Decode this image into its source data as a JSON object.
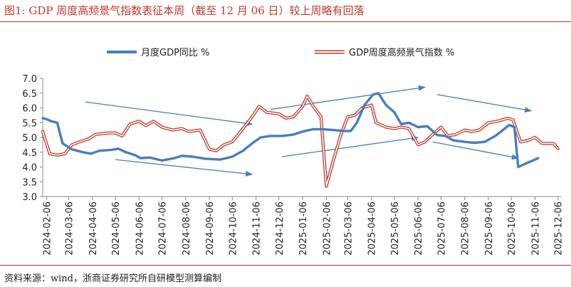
{
  "header": {
    "title": "图1:   GDP 周度高频景气指数表征本周（截至 12 月 06 日）较上周略有回落"
  },
  "footer": {
    "source": "资料来源：wind，浙商证券研究所自研模型测算编制"
  },
  "colors": {
    "title": "#c0392b",
    "gdp_yoy": "#4a7ebb",
    "index_outer": "#c0392b",
    "index_inner": "#ffffff",
    "arrow": "#4a7ebb",
    "axis": "#888888"
  },
  "chart_data": {
    "type": "line",
    "title": "",
    "xlabel": "",
    "ylabel": "",
    "ylim": [
      3.0,
      7.0
    ],
    "y_ticks": [
      "3.0",
      "3.5",
      "4.0",
      "4.5",
      "5.0",
      "5.5",
      "6.0",
      "6.5",
      "7.0"
    ],
    "x_tick_labels": [
      "2024-02-06",
      "2024-03-06",
      "2024-04-06",
      "2024-05-06",
      "2024-06-06",
      "2024-07-06",
      "2024-08-06",
      "2024-09-06",
      "2024-10-06",
      "2024-11-06",
      "2024-12-06",
      "2025-01-06",
      "2025-02-06",
      "2025-03-06",
      "2025-04-06",
      "2025-05-06",
      "2025-06-06",
      "2025-07-06",
      "2025-08-06",
      "2025-09-06",
      "2025-10-06",
      "2025-11-06",
      "2025-12-06"
    ],
    "grid": false,
    "legend_position": "top",
    "series": [
      {
        "name": "月度GDP同比 %",
        "style": "solid-thick",
        "points": [
          [
            "2024-02-01",
            5.65
          ],
          [
            "2024-02-06",
            5.62
          ],
          [
            "2024-02-12",
            5.55
          ],
          [
            "2024-02-20",
            5.5
          ],
          [
            "2024-02-27",
            4.8
          ],
          [
            "2024-03-10",
            4.6
          ],
          [
            "2024-03-25",
            4.5
          ],
          [
            "2024-04-04",
            4.45
          ],
          [
            "2024-04-15",
            4.55
          ],
          [
            "2024-05-01",
            4.58
          ],
          [
            "2024-05-10",
            4.62
          ],
          [
            "2024-05-20",
            4.5
          ],
          [
            "2024-06-01",
            4.4
          ],
          [
            "2024-06-08",
            4.3
          ],
          [
            "2024-06-20",
            4.32
          ],
          [
            "2024-07-06",
            4.22
          ],
          [
            "2024-07-22",
            4.3
          ],
          [
            "2024-08-01",
            4.38
          ],
          [
            "2024-08-15",
            4.35
          ],
          [
            "2024-09-01",
            4.28
          ],
          [
            "2024-09-20",
            4.25
          ],
          [
            "2024-10-06",
            4.35
          ],
          [
            "2024-10-20",
            4.55
          ],
          [
            "2024-11-01",
            4.8
          ],
          [
            "2024-11-12",
            5.0
          ],
          [
            "2024-11-25",
            5.05
          ],
          [
            "2024-12-10",
            5.05
          ],
          [
            "2024-12-25",
            5.1
          ],
          [
            "2025-01-06",
            5.2
          ],
          [
            "2025-01-20",
            5.28
          ],
          [
            "2025-02-01",
            5.28
          ],
          [
            "2025-02-15",
            5.25
          ],
          [
            "2025-03-01",
            5.22
          ],
          [
            "2025-03-10",
            5.22
          ],
          [
            "2025-03-18",
            5.5
          ],
          [
            "2025-03-28",
            6.1
          ],
          [
            "2025-04-08",
            6.45
          ],
          [
            "2025-04-15",
            6.5
          ],
          [
            "2025-04-25",
            6.1
          ],
          [
            "2025-05-06",
            5.85
          ],
          [
            "2025-05-15",
            5.45
          ],
          [
            "2025-05-25",
            5.5
          ],
          [
            "2025-06-06",
            5.35
          ],
          [
            "2025-06-18",
            5.38
          ],
          [
            "2025-07-01",
            5.08
          ],
          [
            "2025-07-12",
            5.05
          ],
          [
            "2025-07-22",
            4.9
          ],
          [
            "2025-08-06",
            4.85
          ],
          [
            "2025-08-18",
            4.82
          ],
          [
            "2025-09-01",
            4.85
          ],
          [
            "2025-09-15",
            5.05
          ],
          [
            "2025-09-25",
            5.25
          ],
          [
            "2025-10-03",
            5.42
          ],
          [
            "2025-10-10",
            5.35
          ],
          [
            "2025-10-15",
            4.0
          ],
          [
            "2025-10-25",
            4.12
          ],
          [
            "2025-11-06",
            4.25
          ],
          [
            "2025-11-10",
            4.3
          ]
        ]
      },
      {
        "name": "GDP周度高频景气指数 %",
        "style": "double-outline",
        "points": [
          [
            "2024-02-01",
            5.2
          ],
          [
            "2024-02-10",
            4.45
          ],
          [
            "2024-02-20",
            4.4
          ],
          [
            "2024-03-01",
            4.45
          ],
          [
            "2024-03-10",
            4.75
          ],
          [
            "2024-03-20",
            4.85
          ],
          [
            "2024-04-01",
            4.95
          ],
          [
            "2024-04-10",
            5.1
          ],
          [
            "2024-04-25",
            5.15
          ],
          [
            "2024-05-06",
            5.15
          ],
          [
            "2024-05-15",
            5.05
          ],
          [
            "2024-05-25",
            5.45
          ],
          [
            "2024-06-06",
            5.55
          ],
          [
            "2024-06-15",
            5.4
          ],
          [
            "2024-06-25",
            5.55
          ],
          [
            "2024-07-06",
            5.35
          ],
          [
            "2024-07-20",
            5.25
          ],
          [
            "2024-08-01",
            5.3
          ],
          [
            "2024-08-10",
            5.2
          ],
          [
            "2024-08-25",
            5.25
          ],
          [
            "2024-09-06",
            4.6
          ],
          [
            "2024-09-15",
            4.55
          ],
          [
            "2024-09-25",
            4.75
          ],
          [
            "2024-10-06",
            4.85
          ],
          [
            "2024-10-20",
            5.3
          ],
          [
            "2024-11-01",
            5.7
          ],
          [
            "2024-11-10",
            6.05
          ],
          [
            "2024-11-20",
            5.85
          ],
          [
            "2024-12-06",
            5.8
          ],
          [
            "2024-12-15",
            5.65
          ],
          [
            "2024-12-25",
            5.7
          ],
          [
            "2025-01-06",
            6.05
          ],
          [
            "2025-01-12",
            6.4
          ],
          [
            "2025-01-20",
            6.05
          ],
          [
            "2025-01-30",
            5.7
          ],
          [
            "2025-02-06",
            3.35
          ],
          [
            "2025-02-15",
            4.2
          ],
          [
            "2025-02-25",
            5.1
          ],
          [
            "2025-03-06",
            5.7
          ],
          [
            "2025-03-15",
            5.75
          ],
          [
            "2025-03-25",
            6.0
          ],
          [
            "2025-04-06",
            6.1
          ],
          [
            "2025-04-12",
            5.5
          ],
          [
            "2025-04-25",
            5.35
          ],
          [
            "2025-05-06",
            5.3
          ],
          [
            "2025-05-15",
            5.35
          ],
          [
            "2025-05-25",
            5.3
          ],
          [
            "2025-06-06",
            4.75
          ],
          [
            "2025-06-15",
            4.85
          ],
          [
            "2025-06-25",
            5.1
          ],
          [
            "2025-07-06",
            5.35
          ],
          [
            "2025-07-15",
            5.05
          ],
          [
            "2025-07-25",
            5.1
          ],
          [
            "2025-08-06",
            5.25
          ],
          [
            "2025-08-15",
            5.2
          ],
          [
            "2025-08-25",
            5.25
          ],
          [
            "2025-09-06",
            5.5
          ],
          [
            "2025-09-18",
            5.55
          ],
          [
            "2025-10-01",
            5.65
          ],
          [
            "2025-10-08",
            5.6
          ],
          [
            "2025-10-18",
            4.85
          ],
          [
            "2025-10-28",
            4.9
          ],
          [
            "2025-11-06",
            5.0
          ],
          [
            "2025-11-15",
            4.8
          ],
          [
            "2025-11-25",
            4.8
          ],
          [
            "2025-12-01",
            4.78
          ],
          [
            "2025-12-06",
            4.62
          ]
        ]
      }
    ],
    "trend_arrows": [
      {
        "from": [
          "2024-03-28",
          6.2
        ],
        "to": [
          "2024-11-01",
          5.45
        ]
      },
      {
        "from": [
          "2024-05-06",
          4.25
        ],
        "to": [
          "2024-11-01",
          3.75
        ]
      },
      {
        "from": [
          "2024-11-25",
          5.95
        ],
        "to": [
          "2025-06-15",
          6.7
        ]
      },
      {
        "from": [
          "2024-12-10",
          4.35
        ],
        "to": [
          "2025-06-06",
          5.0
        ]
      },
      {
        "from": [
          "2025-07-01",
          6.45
        ],
        "to": [
          "2025-11-01",
          5.9
        ]
      },
      {
        "from": [
          "2025-06-25",
          4.85
        ],
        "to": [
          "2025-10-15",
          4.3
        ]
      }
    ]
  }
}
